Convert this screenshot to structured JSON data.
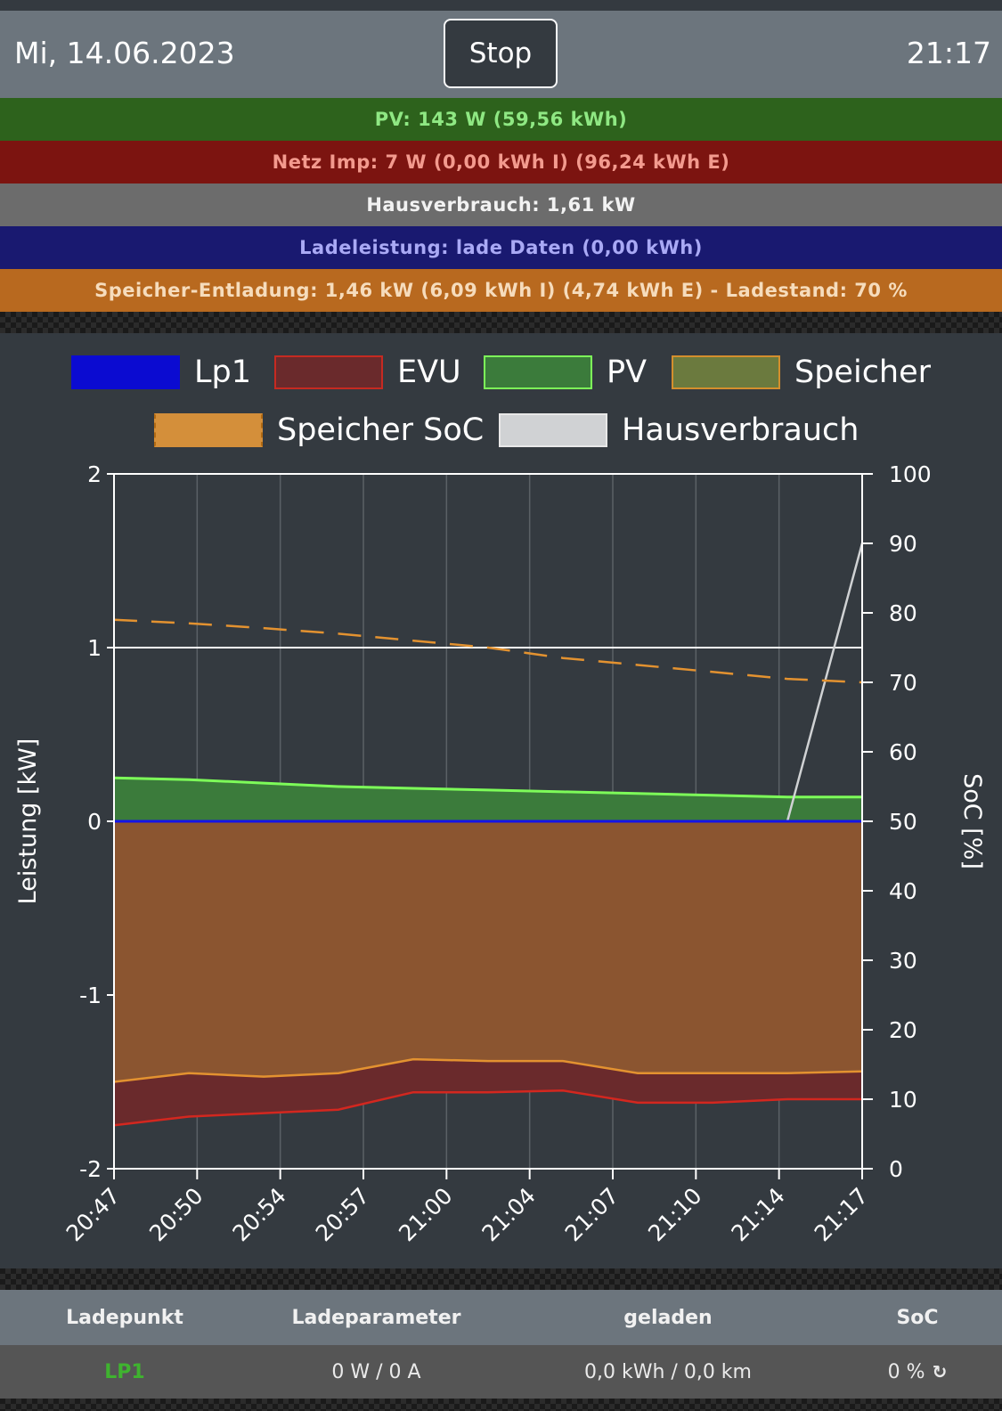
{
  "header": {
    "date": "Mi, 14.06.2023",
    "stop_label": "Stop",
    "time": "21:17"
  },
  "status_bars": {
    "pv": "PV: 143 W (59,56 kWh)",
    "netz": "Netz Imp: 7 W (0,00 kWh I) (96,24 kWh E)",
    "hausverbrauch": "Hausverbrauch: 1,61 kW",
    "ladeleistung": "Ladeleistung: lade Daten (0,00 kWh)",
    "speicher": "Speicher-Entladung: 1,46 kW (6,09 kWh I) (4,74 kWh E) - Ladestand: 70 %"
  },
  "colors": {
    "pv": "#2d621c",
    "netz": "#7c1410",
    "haus": "#6c6c6c",
    "lade": "#191970",
    "speicher": "#b8691f",
    "chart_bg": "#343a40"
  },
  "chart_data": {
    "type": "area",
    "legend": [
      "Lp1",
      "EVU",
      "PV",
      "Speicher",
      "Speicher SoC",
      "Hausverbrauch"
    ],
    "legend_position": "top",
    "ylabel": "Leistung [kW]",
    "y2label": "SoC [%]",
    "ylim": [
      -2,
      2
    ],
    "y2lim": [
      0,
      100
    ],
    "yticks": [
      "2",
      "1",
      "0",
      "-1",
      "-2"
    ],
    "y2ticks": [
      "100",
      "90",
      "80",
      "70",
      "60",
      "50",
      "40",
      "30",
      "20",
      "10",
      "0"
    ],
    "xticks": [
      "20:47",
      "20:50",
      "20:54",
      "20:57",
      "21:00",
      "21:04",
      "21:07",
      "21:10",
      "21:14",
      "21:17"
    ],
    "x_minutes": [
      0,
      3,
      6,
      9,
      12,
      15,
      18,
      21,
      24,
      27,
      30
    ],
    "series": [
      {
        "name": "Lp1",
        "values": [
          0,
          0,
          0,
          0,
          0,
          0,
          0,
          0,
          0,
          0,
          0
        ]
      },
      {
        "name": "EVU",
        "values": [
          -1.75,
          -1.7,
          -1.68,
          -1.66,
          -1.56,
          -1.56,
          -1.55,
          -1.62,
          -1.62,
          -1.6,
          -1.6
        ]
      },
      {
        "name": "PV",
        "values": [
          0.25,
          0.24,
          0.22,
          0.2,
          0.19,
          0.18,
          0.17,
          0.16,
          0.15,
          0.14,
          0.14
        ]
      },
      {
        "name": "Speicher",
        "values": [
          -1.5,
          -1.45,
          -1.47,
          -1.45,
          -1.37,
          -1.38,
          -1.38,
          -1.45,
          -1.45,
          -1.45,
          -1.44
        ]
      },
      {
        "name": "Speicher SoC",
        "values": [
          79,
          78.5,
          77.8,
          77,
          76,
          75,
          73.5,
          72.5,
          71.5,
          70.5,
          70
        ]
      },
      {
        "name": "Hausverbrauch",
        "values": [
          0,
          0,
          0,
          0,
          0,
          0,
          0,
          0,
          0,
          0,
          1.6
        ]
      }
    ]
  },
  "table": {
    "headers": [
      "Ladepunkt",
      "Ladeparameter",
      "geladen",
      "SoC"
    ],
    "row": {
      "ladepunkt": "LP1",
      "ladeparameter": "0 W / 0 A",
      "geladen": "0,0 kWh / 0,0 km",
      "soc": "0 %"
    }
  }
}
